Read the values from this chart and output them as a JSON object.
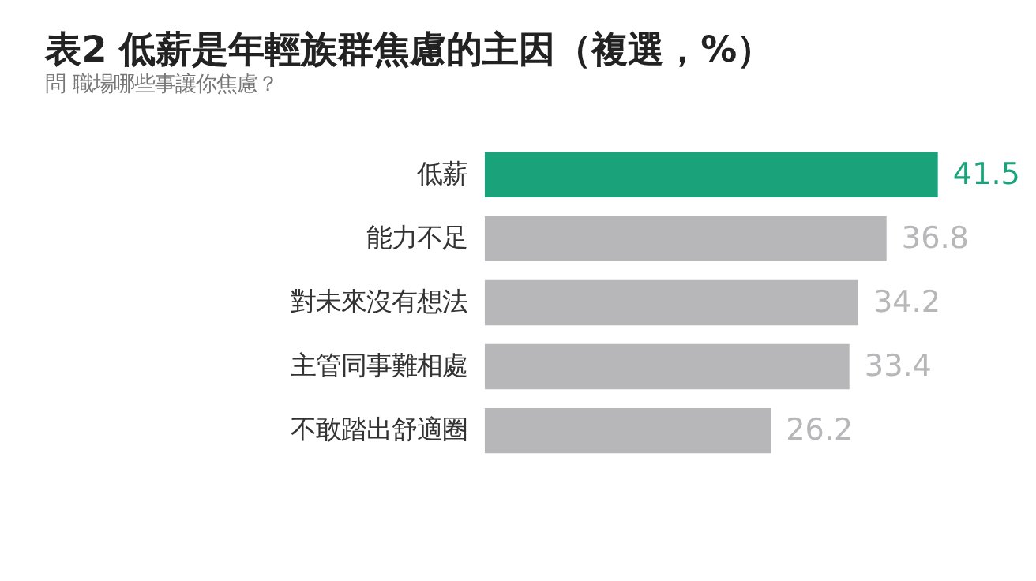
{
  "chart_data": {
    "type": "bar",
    "orientation": "horizontal",
    "title": "表2 低薪是年輕族群焦慮的主因（複選，%）",
    "subtitle": "問 職場哪些事讓你焦慮？",
    "categories": [
      "低薪",
      "能力不足",
      "對未來沒有想法",
      "主管同事難相處",
      "不敢踏出舒適圈"
    ],
    "values": [
      41.5,
      36.8,
      34.2,
      33.4,
      26.2
    ],
    "colors": [
      "#1aa37a",
      "#b7b7b9",
      "#b7b7b9",
      "#b7b7b9",
      "#b7b7b9"
    ],
    "data_labels": true,
    "tick_labels": "y",
    "grid": false
  }
}
